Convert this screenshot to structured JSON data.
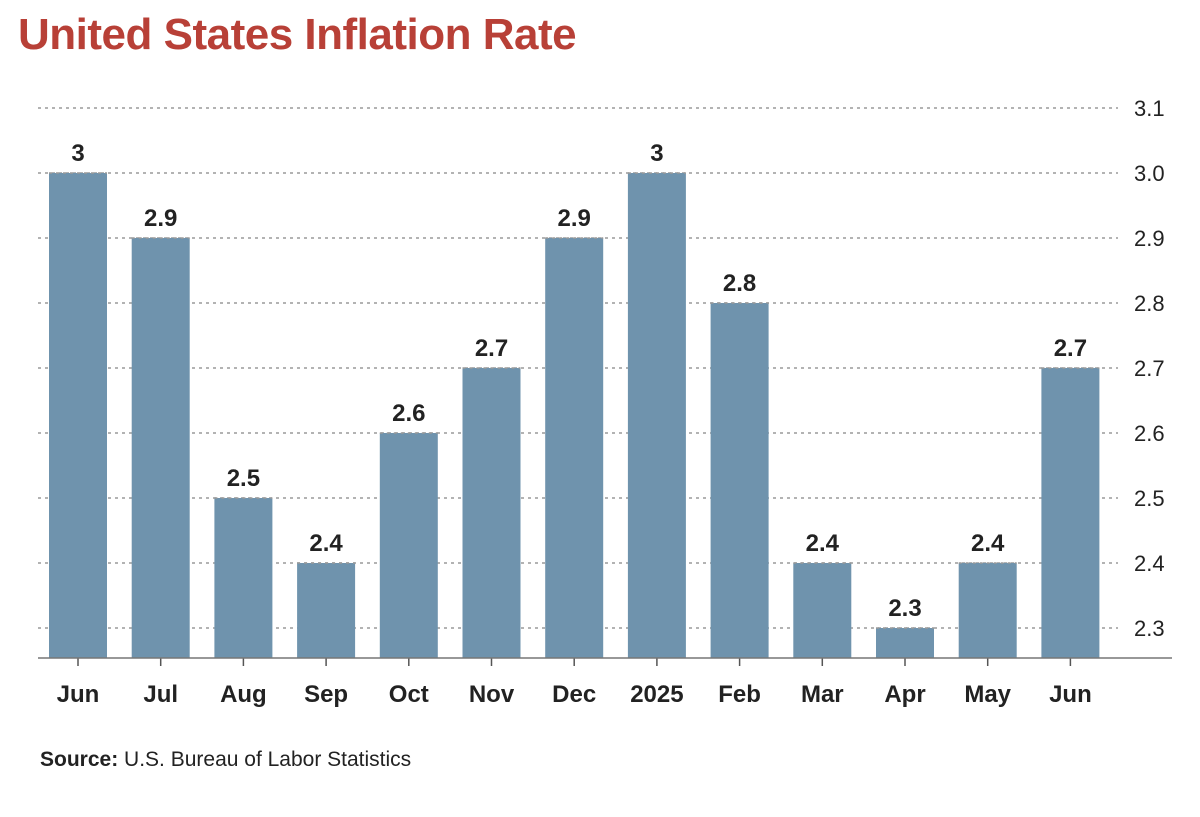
{
  "title": "United States Inflation Rate",
  "source": {
    "label": "Source:",
    "text": "U.S. Bureau of Labor Statistics"
  },
  "colors": {
    "title": "#b84037",
    "bar": "#6f93ad",
    "grid": "#9a9a9a",
    "text": "#222222"
  },
  "chart_data": {
    "type": "bar",
    "categories": [
      "Jun",
      "Jul",
      "Aug",
      "Sep",
      "Oct",
      "Nov",
      "Dec",
      "2025",
      "Feb",
      "Mar",
      "Apr",
      "May",
      "Jun"
    ],
    "values": [
      3.0,
      2.9,
      2.5,
      2.4,
      2.6,
      2.7,
      2.9,
      3.0,
      2.8,
      2.4,
      2.3,
      2.4,
      2.7
    ],
    "data_labels": [
      "3",
      "2.9",
      "2.5",
      "2.4",
      "2.6",
      "2.7",
      "2.9",
      "3",
      "2.8",
      "2.4",
      "2.3",
      "2.4",
      "2.7"
    ],
    "y_ticks": [
      "2.3",
      "2.4",
      "2.5",
      "2.6",
      "2.7",
      "2.8",
      "2.9",
      "3.0",
      "3.1"
    ],
    "y_tick_values": [
      2.3,
      2.4,
      2.5,
      2.6,
      2.7,
      2.8,
      2.9,
      3.0,
      3.1
    ],
    "ylim": [
      2.243,
      3.1
    ],
    "y_axis_position": "right",
    "grid": true,
    "grid_style": "dotted",
    "xlabel": "",
    "ylabel": ""
  }
}
